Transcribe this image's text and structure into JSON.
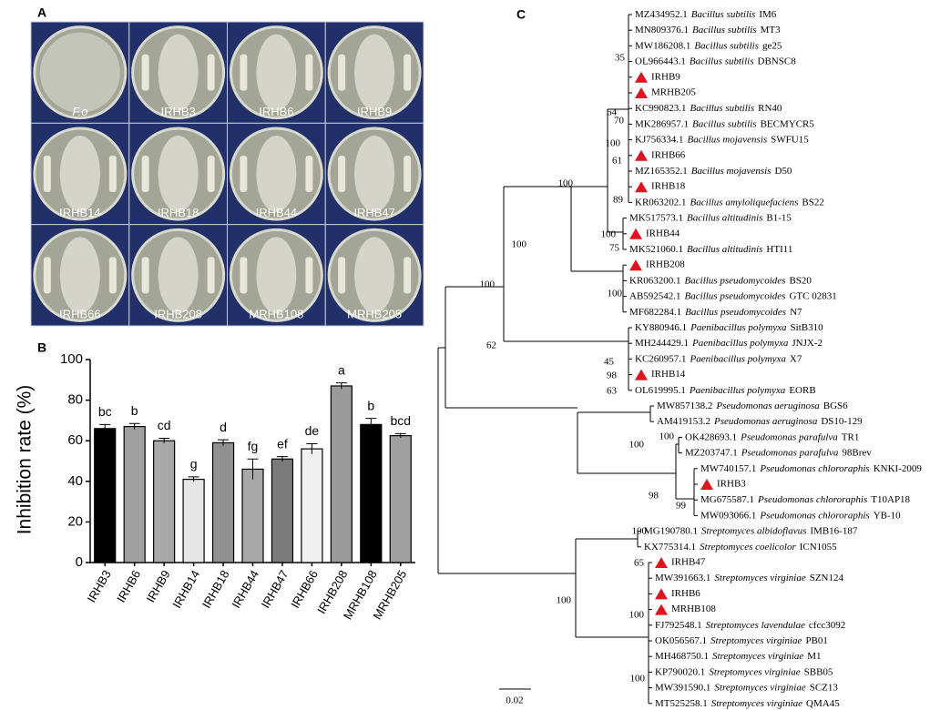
{
  "panel_labels": [
    "A",
    "B",
    "C"
  ],
  "plates": [
    "F.o",
    "IRHB3",
    "IRHB6",
    "IRHB9",
    "IRHB14",
    "IRHB18",
    "IRHB44",
    "IRHB47",
    "IRHB66",
    "IRHB208",
    "MRHB108",
    "MRHB205"
  ],
  "chart_data": {
    "type": "bar",
    "ylabel": "Inhibition rate (%)",
    "categories": [
      "IRHB3",
      "IRHB6",
      "IRHB9",
      "IRHB14",
      "IRHB18",
      "IRHB44",
      "IRHB47",
      "IRHB66",
      "IRHB208",
      "MRHB108",
      "MRHB205"
    ],
    "values": [
      66,
      67,
      60,
      41,
      59,
      46,
      51,
      56,
      87,
      68,
      62.5
    ],
    "errors": [
      2,
      1.5,
      1.2,
      1.2,
      1.5,
      5,
      1.2,
      2.5,
      1.5,
      3,
      1
    ],
    "significance": [
      "bc",
      "b",
      "cd",
      "g",
      "d",
      "fg",
      "ef",
      "de",
      "a",
      "b",
      "bcd"
    ],
    "colors": [
      "#000000",
      "#a0a0a0",
      "#a8a8a8",
      "#e6e6e6",
      "#909090",
      "#a8a8a8",
      "#7a7a7a",
      "#f0f0f0",
      "#9a9a9a",
      "#000000",
      "#a0a0a0"
    ],
    "ylim": [
      0,
      100
    ],
    "yticks": [
      0,
      20,
      40,
      60,
      80,
      100
    ]
  },
  "tree": {
    "scale": "0.02",
    "bootstrap": [
      "35",
      "64",
      "70",
      "100",
      "61",
      "100",
      "89",
      "100",
      "100",
      "75",
      "100",
      "100",
      "45",
      "98",
      "63",
      "100",
      "100",
      "98",
      "99",
      "100",
      "100",
      "65",
      "100",
      "100",
      "62"
    ],
    "leaves": [
      {
        "accession": "MZ434952.1",
        "species": "Bacillus subtilis",
        "strain": "IM6"
      },
      {
        "accession": "MN809376.1",
        "species": "Bacillus subtilis",
        "strain": "MT3"
      },
      {
        "accession": "MW186208.1",
        "species": "Bacillus subtilis",
        "strain": "ge25"
      },
      {
        "accession": "OL966443.1",
        "species": "Bacillus subtilis",
        "strain": "DBNSC8"
      },
      {
        "label": "IRHB9"
      },
      {
        "label": "MRHB205"
      },
      {
        "accession": "KC990823.1",
        "species": "Bacillus subtilis",
        "strain": "RN40"
      },
      {
        "accession": "MK286957.1",
        "species": "Bacillus subtilis",
        "strain": "BECMYCR5"
      },
      {
        "accession": "KJ756334.1",
        "species": "Bacillus mojavensis",
        "strain": "SWFU15"
      },
      {
        "label": "IRHB66"
      },
      {
        "accession": "MZ165352.1",
        "species": "Bacillus mojavensis",
        "strain": "D50"
      },
      {
        "label": "IRHB18"
      },
      {
        "accession": "KR063202.1",
        "species": "Bacillus amyloliquefaciens",
        "strain": "BS22"
      },
      {
        "accession": "MK517573.1",
        "species": "Bacillus altitudinis",
        "strain": "B1-15"
      },
      {
        "label": "IRHB44"
      },
      {
        "accession": "MK521060.1",
        "species": "Bacillus altitudinis",
        "strain": "HTI11"
      },
      {
        "label": "IRHB208"
      },
      {
        "accession": "KR063200.1",
        "species": "Bacillus pseudomycoides",
        "strain": "BS20"
      },
      {
        "accession": "AB592542.1",
        "species": "Bacillus pseudomycoides",
        "strain": "GTC 02831"
      },
      {
        "accession": "MF682284.1",
        "species": "Bacillus pseudomycoides",
        "strain": "N7"
      },
      {
        "accession": "KY880946.1",
        "species": "Paenibacillus polymyxa",
        "strain": "SitB310"
      },
      {
        "accession": "MH244429.1",
        "species": "Paenibacillus polymyxa",
        "strain": "JNJX-2"
      },
      {
        "accession": "KC260957.1",
        "species": "Paenibacillus polymyxa",
        "strain": "X7"
      },
      {
        "label": "IRHB14"
      },
      {
        "accession": "OL619995.1",
        "species": "Paenibacillus polymyxa",
        "strain": "EORB"
      },
      {
        "accession": "MW857138.2",
        "species": "Pseudomonas aeruginosa",
        "strain": "BGS6"
      },
      {
        "accession": "AM419153.2",
        "species": "Pseudomonas aeruginosa",
        "strain": "DS10-129"
      },
      {
        "accession": "OK428693.1",
        "species": "Pseudomonas parafulva",
        "strain": "TR1"
      },
      {
        "accession": "MZ203747.1",
        "species": "Pseudomonas parafulva",
        "strain": "98Brev"
      },
      {
        "accession": "MW740157.1",
        "species": "Pseudomonas chlororaphis",
        "strain": "KNKI-2009"
      },
      {
        "label": "IRHB3"
      },
      {
        "accession": "MG675587.1",
        "species": "Pseudomonas chlororaphis",
        "strain": "T10AP18"
      },
      {
        "accession": "MW093066.1",
        "species": "Pseudomonas chlororaphis",
        "strain": "YB-10"
      },
      {
        "accession": "MG190780.1",
        "species": "Streptomyces albidoflavus",
        "strain": "IMB16-187"
      },
      {
        "accession": "KX775314.1",
        "species": "Streptomyces coelicolor",
        "strain": "ICN1055"
      },
      {
        "label": "IRHB47"
      },
      {
        "accession": "MW391663.1",
        "species": "Streptomyces virginiae",
        "strain": "SZN124"
      },
      {
        "label": "IRHB6"
      },
      {
        "label": "MRHB108"
      },
      {
        "accession": "FJ792548.1",
        "species": "Streptomyces lavendulae",
        "strain": "cfcc3092"
      },
      {
        "accession": "OK056567.1",
        "species": "Streptomyces virginiae",
        "strain": "PB01"
      },
      {
        "accession": "MH468750.1",
        "species": "Streptomyces virginiae",
        "strain": "M1"
      },
      {
        "accession": "KP790020.1",
        "species": "Streptomyces virginiae",
        "strain": "SBB05"
      },
      {
        "accession": "MW391590.1",
        "species": "Streptomyces virginiae",
        "strain": "SCZ13"
      },
      {
        "accession": "MT525258.1",
        "species": "Streptomyces virginiae",
        "strain": "QMA45"
      }
    ]
  }
}
